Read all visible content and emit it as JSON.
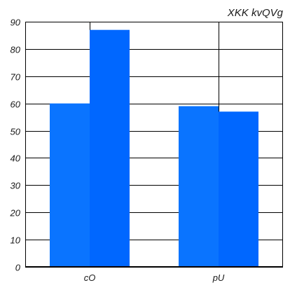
{
  "chart_data": {
    "type": "bar",
    "title": "XKK kvQVg",
    "xlabel": "",
    "ylabel": "",
    "categories": [
      "cO",
      "pU"
    ],
    "series": [
      {
        "values": [
          60,
          59
        ],
        "color": "#0a74ff"
      },
      {
        "values": [
          87,
          57
        ],
        "color": "#0067ff"
      }
    ],
    "ylim": [
      0,
      90
    ],
    "yticks": [
      0,
      10,
      20,
      30,
      40,
      50,
      60,
      70,
      80,
      90
    ],
    "grid": "both",
    "legend": "none"
  }
}
